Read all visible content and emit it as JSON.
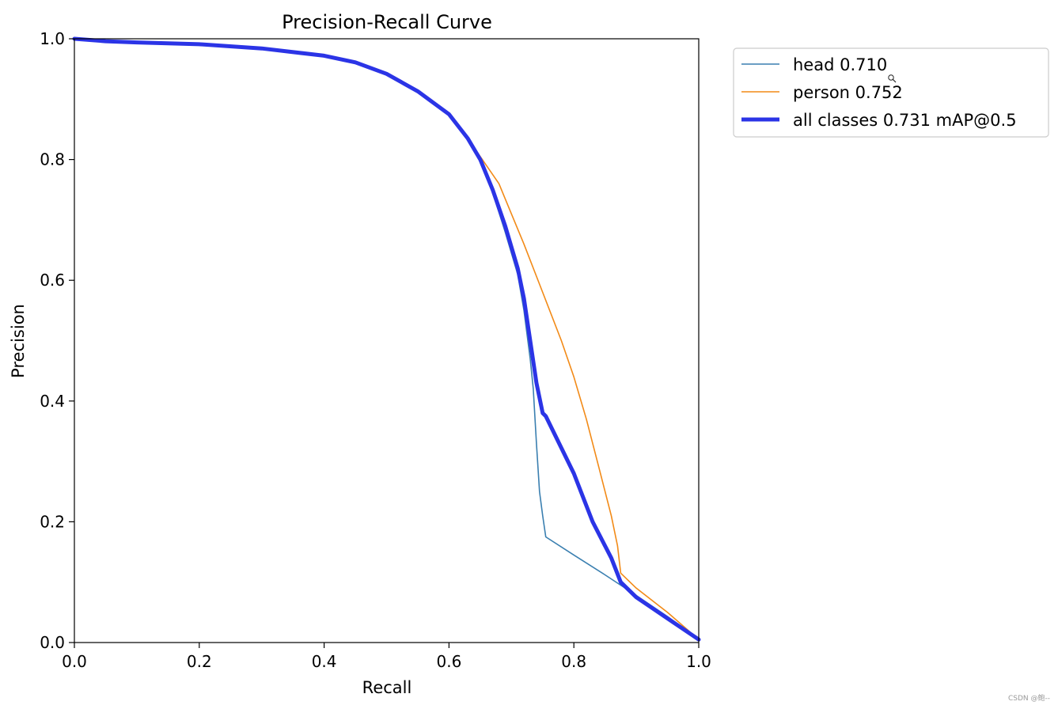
{
  "chart_data": {
    "type": "line",
    "title": "Precision-Recall Curve",
    "xlabel": "Recall",
    "ylabel": "Precision",
    "xlim": [
      0,
      1
    ],
    "ylim": [
      0,
      1
    ],
    "xticks": [
      0.0,
      0.2,
      0.4,
      0.6,
      0.8,
      1.0
    ],
    "yticks": [
      0.0,
      0.2,
      0.4,
      0.6,
      0.8,
      1.0
    ],
    "grid": false,
    "legend_position": "outside-top-right",
    "series": [
      {
        "name": "head 0.710",
        "color": "#3a7fb0",
        "x": [
          0.0,
          0.05,
          0.1,
          0.2,
          0.3,
          0.4,
          0.45,
          0.5,
          0.55,
          0.6,
          0.63,
          0.65,
          0.67,
          0.69,
          0.71,
          0.72,
          0.73,
          0.735,
          0.74,
          0.745,
          0.75,
          0.755,
          0.8,
          0.85,
          0.9,
          0.95,
          1.0
        ],
        "y": [
          1.0,
          0.996,
          0.994,
          0.991,
          0.984,
          0.972,
          0.961,
          0.943,
          0.915,
          0.875,
          0.835,
          0.8,
          0.745,
          0.68,
          0.61,
          0.55,
          0.47,
          0.42,
          0.33,
          0.25,
          0.21,
          0.175,
          0.145,
          0.112,
          0.078,
          0.043,
          0.005
        ]
      },
      {
        "name": "person 0.752",
        "color": "#f28a17",
        "x": [
          0.0,
          0.05,
          0.1,
          0.2,
          0.3,
          0.4,
          0.45,
          0.5,
          0.55,
          0.6,
          0.63,
          0.65,
          0.68,
          0.7,
          0.72,
          0.75,
          0.78,
          0.8,
          0.82,
          0.84,
          0.86,
          0.87,
          0.875,
          0.9,
          0.95,
          1.0
        ],
        "y": [
          1.0,
          0.996,
          0.994,
          0.991,
          0.984,
          0.972,
          0.961,
          0.942,
          0.912,
          0.875,
          0.835,
          0.805,
          0.76,
          0.71,
          0.66,
          0.58,
          0.5,
          0.44,
          0.37,
          0.29,
          0.21,
          0.16,
          0.115,
          0.09,
          0.05,
          0.005
        ]
      },
      {
        "name": "all classes 0.731 mAP@0.5",
        "color": "#2b34e6",
        "x": [
          0.0,
          0.05,
          0.1,
          0.2,
          0.3,
          0.4,
          0.45,
          0.5,
          0.55,
          0.6,
          0.63,
          0.65,
          0.67,
          0.69,
          0.71,
          0.72,
          0.73,
          0.74,
          0.75,
          0.755,
          0.8,
          0.83,
          0.86,
          0.875,
          0.9,
          0.95,
          1.0
        ],
        "y": [
          1.0,
          0.996,
          0.994,
          0.991,
          0.984,
          0.972,
          0.961,
          0.942,
          0.913,
          0.875,
          0.835,
          0.8,
          0.75,
          0.69,
          0.62,
          0.57,
          0.5,
          0.43,
          0.38,
          0.375,
          0.28,
          0.2,
          0.14,
          0.1,
          0.075,
          0.04,
          0.005
        ]
      }
    ]
  },
  "watermark": "CSDN @鲍--"
}
